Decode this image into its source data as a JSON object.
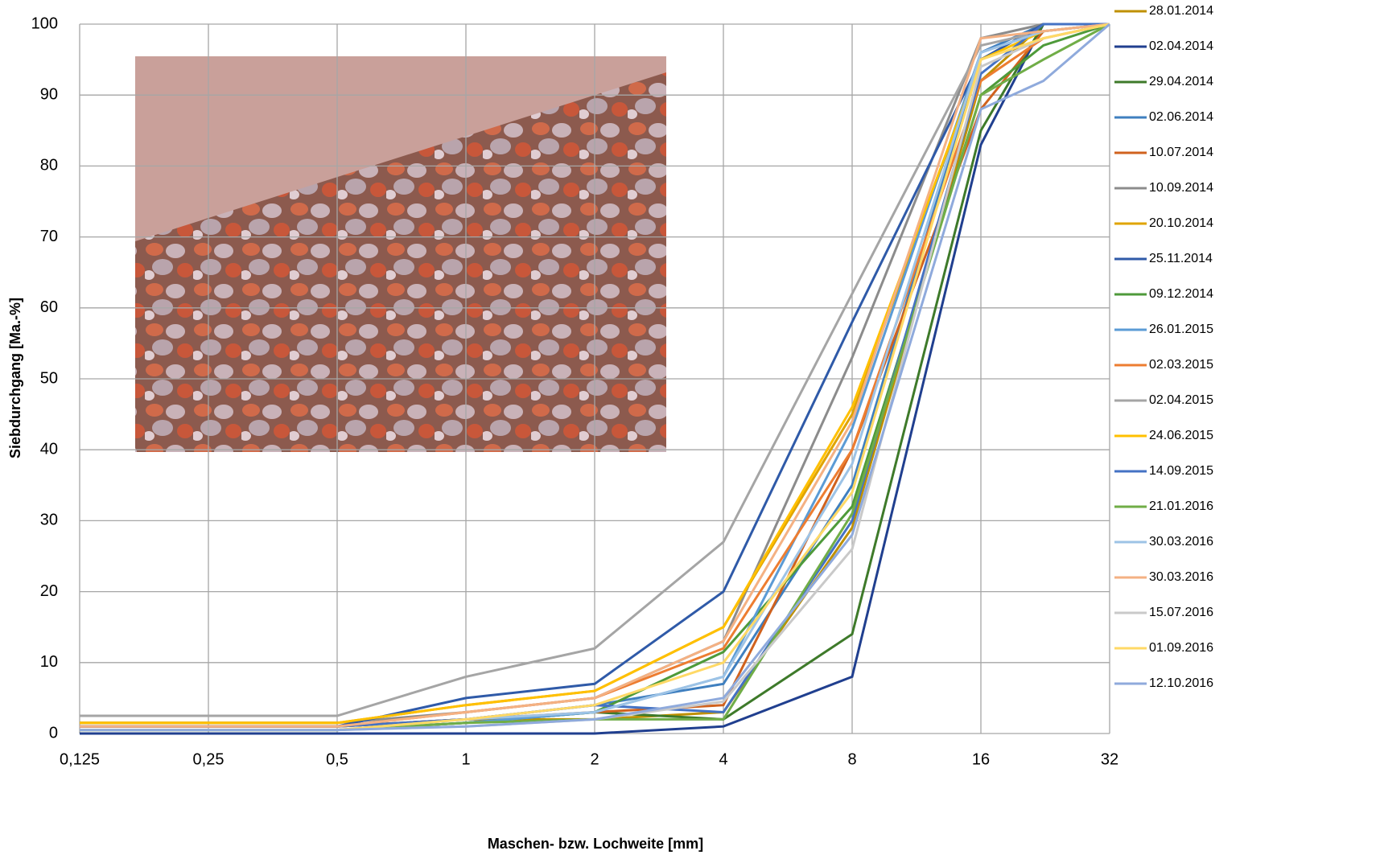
{
  "chart_data": {
    "type": "line",
    "y_label": "Siebdurchgang [Ma.-%]",
    "x_label": "Maschen- bzw. Lochweite [mm]",
    "x": [
      0.125,
      0.25,
      0.5,
      1,
      2,
      4,
      8,
      16,
      22.4,
      32
    ],
    "x_log_base": 2,
    "xlim": [
      0.125,
      32
    ],
    "xticks": [
      {
        "value": 0.125,
        "label": "0,125"
      },
      {
        "value": 0.25,
        "label": "0,25"
      },
      {
        "value": 0.5,
        "label": "0,5"
      },
      1,
      2,
      4,
      8,
      16,
      32
    ],
    "ylim": [
      0,
      100
    ],
    "yticks": [
      0,
      10,
      20,
      30,
      40,
      50,
      60,
      70,
      80,
      90,
      100
    ],
    "grid": true,
    "legend": "right",
    "series": [
      {
        "name": "28.01.2014",
        "color": "#bf9000",
        "values": [
          1,
          1,
          1,
          2,
          2,
          3,
          29,
          92,
          100,
          100
        ]
      },
      {
        "name": "02.04.2014",
        "color": "#203f8f",
        "values": [
          0,
          0,
          0,
          0,
          0,
          1,
          8,
          83,
          100,
          100
        ]
      },
      {
        "name": "29.04.2014",
        "color": "#3e7a2a",
        "values": [
          0.5,
          0.5,
          0.5,
          1.5,
          3,
          2,
          14,
          85,
          100,
          100
        ]
      },
      {
        "name": "02.06.2014",
        "color": "#3f7fbf",
        "values": [
          1,
          1,
          1,
          2,
          4,
          7,
          35,
          96,
          100,
          100
        ]
      },
      {
        "name": "10.07.2014",
        "color": "#d0621e",
        "values": [
          1,
          1,
          1,
          2,
          3,
          4,
          40,
          88,
          99,
          100
        ]
      },
      {
        "name": "10.09.2014",
        "color": "#8c8c8c",
        "values": [
          1.5,
          1.5,
          1.5,
          3,
          5,
          13,
          53,
          98,
          100,
          100
        ]
      },
      {
        "name": "20.10.2014",
        "color": "#e0a400",
        "values": [
          1.5,
          1.5,
          1.5,
          4,
          6,
          15,
          45,
          95,
          100,
          100
        ]
      },
      {
        "name": "25.11.2014",
        "color": "#2f5aa8",
        "values": [
          1,
          1,
          1,
          5,
          7,
          20,
          58,
          95,
          100,
          100
        ]
      },
      {
        "name": "09.12.2014",
        "color": "#4e9a3a",
        "values": [
          0.5,
          0.5,
          0.5,
          1.5,
          3,
          11.5,
          32,
          90,
          97,
          100
        ]
      },
      {
        "name": "26.01.2015",
        "color": "#5b9bd5",
        "values": [
          0.5,
          0.5,
          0.5,
          1.5,
          3,
          8,
          43,
          96,
          99,
          100
        ]
      },
      {
        "name": "02.03.2015",
        "color": "#ed7d31",
        "values": [
          1,
          1,
          1,
          3,
          5,
          12,
          40,
          92,
          98,
          100
        ]
      },
      {
        "name": "02.04.2015",
        "color": "#a5a5a5",
        "values": [
          2.5,
          2.5,
          2.5,
          8,
          12,
          27,
          62,
          97,
          99,
          100
        ]
      },
      {
        "name": "24.06.2015",
        "color": "#ffc000",
        "values": [
          1.5,
          1.5,
          1.5,
          4,
          6,
          15,
          46,
          95,
          99,
          100
        ]
      },
      {
        "name": "14.09.2015",
        "color": "#4472c4",
        "values": [
          1,
          1,
          1,
          2,
          4,
          3,
          30,
          93,
          100,
          100
        ]
      },
      {
        "name": "21.01.2016",
        "color": "#70ad47",
        "values": [
          0.5,
          0.5,
          0.5,
          1.5,
          2,
          2,
          31,
          90,
          95,
          100
        ]
      },
      {
        "name": "30.03.2016",
        "color": "#9dc3e6",
        "values": [
          0.5,
          0.5,
          0.5,
          2,
          3,
          8,
          38,
          96,
          99,
          100
        ]
      },
      {
        "name": "30.03.2016",
        "color": "#f4b183",
        "values": [
          1,
          1,
          1,
          3,
          5,
          13,
          44,
          98,
          99,
          100
        ]
      },
      {
        "name": "15.07.2016",
        "color": "#c9c9c9",
        "values": [
          0.5,
          0.5,
          0.5,
          1,
          2,
          4.5,
          26,
          94,
          98,
          100
        ]
      },
      {
        "name": "01.09.2016",
        "color": "#ffd966",
        "values": [
          0.5,
          0.5,
          0.5,
          2,
          4,
          10,
          34,
          95,
          98,
          100
        ]
      },
      {
        "name": "12.10.2016",
        "color": "#8faadc",
        "values": [
          0.5,
          0.5,
          0.5,
          1,
          2,
          5,
          28,
          88,
          92,
          100
        ]
      }
    ]
  }
}
